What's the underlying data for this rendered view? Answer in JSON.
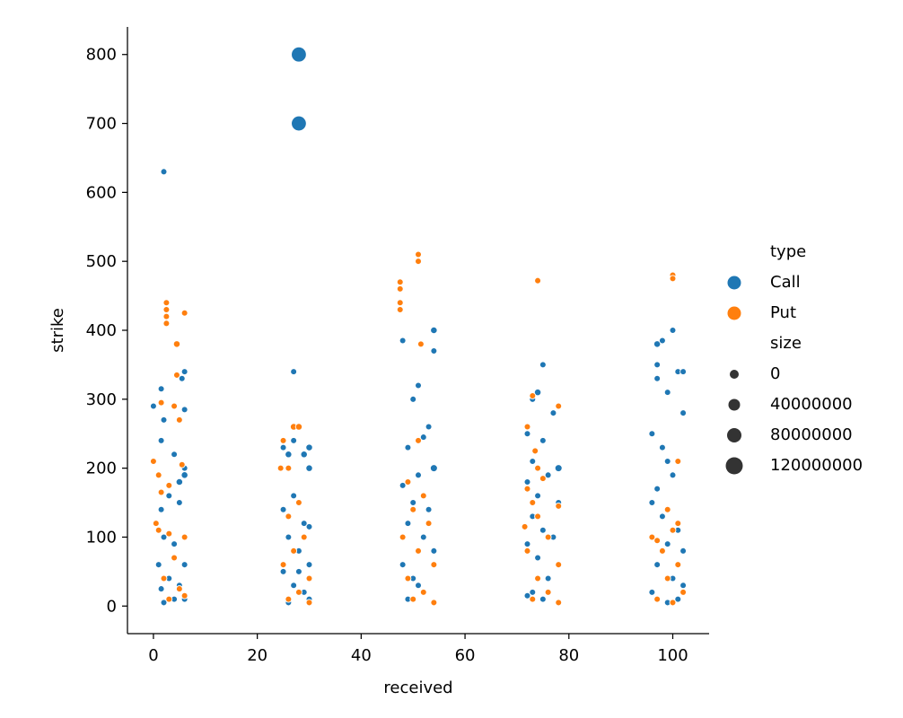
{
  "chart_data": {
    "type": "scatter",
    "xlabel": "received",
    "ylabel": "strike",
    "xlim": [
      -5,
      107
    ],
    "ylim": [
      -40,
      840
    ],
    "xticks": [
      0,
      20,
      40,
      60,
      80,
      100
    ],
    "yticks": [
      0,
      100,
      200,
      300,
      400,
      500,
      600,
      700,
      800
    ],
    "legend": {
      "placement": "right",
      "hue_title": "type",
      "hue_entries": [
        {
          "label": "Call",
          "color": "#1f77b4"
        },
        {
          "label": "Put",
          "color": "#ff7f0e"
        }
      ],
      "size_title": "size",
      "size_entries": [
        {
          "label": "0",
          "value": 0
        },
        {
          "label": "40000000",
          "value": 40000000
        },
        {
          "label": "80000000",
          "value": 80000000
        },
        {
          "label": "120000000",
          "value": 120000000
        }
      ]
    },
    "series": [
      {
        "name": "Call",
        "color": "#1f77b4",
        "points": [
          [
            28,
            800,
            100000000
          ],
          [
            28,
            700,
            100000000
          ],
          [
            2,
            630,
            5000000
          ],
          [
            1.5,
            315,
            5000000
          ],
          [
            0,
            290,
            5000000
          ],
          [
            6,
            285,
            5000000
          ],
          [
            2,
            270,
            5000000
          ],
          [
            1.5,
            240,
            5000000
          ],
          [
            4,
            220,
            5000000
          ],
          [
            5,
            180,
            10000000
          ],
          [
            1.5,
            140,
            5000000
          ],
          [
            0.5,
            120,
            5000000
          ],
          [
            3,
            160,
            5000000
          ],
          [
            5,
            150,
            5000000
          ],
          [
            6,
            200,
            5000000
          ],
          [
            6,
            190,
            10000000
          ],
          [
            2,
            100,
            5000000
          ],
          [
            4,
            90,
            5000000
          ],
          [
            6,
            60,
            5000000
          ],
          [
            1,
            60,
            5000000
          ],
          [
            3,
            40,
            5000000
          ],
          [
            5,
            30,
            5000000
          ],
          [
            6,
            10,
            5000000
          ],
          [
            2,
            5,
            5000000
          ],
          [
            4,
            10,
            5000000
          ],
          [
            1.5,
            25,
            5000000
          ],
          [
            5.5,
            330,
            5000000
          ],
          [
            6,
            340,
            5000000
          ],
          [
            27,
            340,
            5000000
          ],
          [
            25,
            230,
            5000000
          ],
          [
            26,
            220,
            10000000
          ],
          [
            27,
            240,
            5000000
          ],
          [
            29,
            220,
            10000000
          ],
          [
            30,
            230,
            10000000
          ],
          [
            30,
            200,
            10000000
          ],
          [
            25,
            140,
            5000000
          ],
          [
            27,
            160,
            5000000
          ],
          [
            29,
            120,
            5000000
          ],
          [
            30,
            115,
            5000000
          ],
          [
            26,
            100,
            5000000
          ],
          [
            28,
            80,
            5000000
          ],
          [
            30,
            60,
            5000000
          ],
          [
            25,
            50,
            5000000
          ],
          [
            27,
            30,
            5000000
          ],
          [
            29,
            20,
            5000000
          ],
          [
            30,
            10,
            5000000
          ],
          [
            26,
            5,
            5000000
          ],
          [
            28,
            50,
            5000000
          ],
          [
            48,
            385,
            5000000
          ],
          [
            54,
            400,
            10000000
          ],
          [
            54,
            370,
            5000000
          ],
          [
            50,
            300,
            5000000
          ],
          [
            51,
            320,
            5000000
          ],
          [
            53,
            260,
            5000000
          ],
          [
            49,
            230,
            5000000
          ],
          [
            52,
            245,
            5000000
          ],
          [
            54,
            200,
            15000000
          ],
          [
            51,
            190,
            5000000
          ],
          [
            48,
            175,
            5000000
          ],
          [
            50,
            150,
            5000000
          ],
          [
            53,
            140,
            5000000
          ],
          [
            49,
            120,
            5000000
          ],
          [
            52,
            100,
            5000000
          ],
          [
            54,
            80,
            5000000
          ],
          [
            48,
            60,
            5000000
          ],
          [
            50,
            40,
            5000000
          ],
          [
            52,
            20,
            5000000
          ],
          [
            54,
            5,
            10000000
          ],
          [
            49,
            10,
            5000000
          ],
          [
            51,
            30,
            5000000
          ],
          [
            75,
            350,
            5000000
          ],
          [
            74,
            310,
            10000000
          ],
          [
            73,
            300,
            5000000
          ],
          [
            77,
            280,
            5000000
          ],
          [
            72,
            250,
            5000000
          ],
          [
            75,
            240,
            5000000
          ],
          [
            73,
            210,
            5000000
          ],
          [
            78,
            200,
            15000000
          ],
          [
            76,
            190,
            5000000
          ],
          [
            72,
            180,
            5000000
          ],
          [
            74,
            160,
            5000000
          ],
          [
            78,
            150,
            5000000
          ],
          [
            73,
            130,
            5000000
          ],
          [
            75,
            110,
            5000000
          ],
          [
            77,
            100,
            5000000
          ],
          [
            72,
            90,
            5000000
          ],
          [
            74,
            70,
            5000000
          ],
          [
            78,
            60,
            5000000
          ],
          [
            76,
            40,
            5000000
          ],
          [
            73,
            20,
            5000000
          ],
          [
            75,
            10,
            5000000
          ],
          [
            78,
            5,
            5000000
          ],
          [
            72,
            15,
            5000000
          ],
          [
            100,
            400,
            5000000
          ],
          [
            97,
            380,
            10000000
          ],
          [
            98,
            385,
            5000000
          ],
          [
            97,
            350,
            5000000
          ],
          [
            97,
            330,
            5000000
          ],
          [
            99,
            310,
            5000000
          ],
          [
            101,
            340,
            5000000
          ],
          [
            102,
            340,
            5000000
          ],
          [
            102,
            280,
            5000000
          ],
          [
            96,
            250,
            5000000
          ],
          [
            98,
            230,
            5000000
          ],
          [
            99,
            210,
            5000000
          ],
          [
            100,
            190,
            5000000
          ],
          [
            97,
            170,
            5000000
          ],
          [
            96,
            150,
            5000000
          ],
          [
            98,
            130,
            5000000
          ],
          [
            101,
            110,
            5000000
          ],
          [
            99,
            90,
            5000000
          ],
          [
            102,
            80,
            5000000
          ],
          [
            97,
            60,
            5000000
          ],
          [
            100,
            40,
            5000000
          ],
          [
            102,
            30,
            5000000
          ],
          [
            96,
            20,
            5000000
          ],
          [
            101,
            10,
            5000000
          ],
          [
            99,
            5,
            5000000
          ]
        ]
      },
      {
        "name": "Put",
        "color": "#ff7f0e",
        "points": [
          [
            2.5,
            440,
            5000000
          ],
          [
            2.5,
            430,
            5000000
          ],
          [
            2.5,
            420,
            5000000
          ],
          [
            2.5,
            410,
            5000000
          ],
          [
            6,
            425,
            5000000
          ],
          [
            4.5,
            380,
            10000000
          ],
          [
            4.5,
            335,
            5000000
          ],
          [
            1.5,
            295,
            5000000
          ],
          [
            4,
            290,
            5000000
          ],
          [
            5,
            270,
            5000000
          ],
          [
            0,
            210,
            5000000
          ],
          [
            1,
            190,
            5000000
          ],
          [
            3,
            175,
            5000000
          ],
          [
            1.5,
            165,
            5000000
          ],
          [
            0.5,
            120,
            5000000
          ],
          [
            3,
            105,
            5000000
          ],
          [
            6,
            100,
            5000000
          ],
          [
            1,
            110,
            5000000
          ],
          [
            4,
            70,
            5000000
          ],
          [
            2,
            40,
            5000000
          ],
          [
            5,
            25,
            5000000
          ],
          [
            6,
            15,
            5000000
          ],
          [
            3,
            10,
            5000000
          ],
          [
            5.5,
            205,
            5000000
          ],
          [
            27,
            260,
            10000000
          ],
          [
            28,
            260,
            10000000
          ],
          [
            25,
            240,
            5000000
          ],
          [
            26,
            200,
            5000000
          ],
          [
            24.5,
            200,
            5000000
          ],
          [
            28,
            150,
            5000000
          ],
          [
            26,
            130,
            5000000
          ],
          [
            29,
            100,
            5000000
          ],
          [
            27,
            80,
            5000000
          ],
          [
            25,
            60,
            5000000
          ],
          [
            30,
            40,
            5000000
          ],
          [
            28,
            20,
            5000000
          ],
          [
            26,
            10,
            5000000
          ],
          [
            30,
            5,
            5000000
          ],
          [
            51,
            510,
            5000000
          ],
          [
            51,
            500,
            5000000
          ],
          [
            47.5,
            470,
            5000000
          ],
          [
            47.5,
            460,
            5000000
          ],
          [
            47.5,
            440,
            5000000
          ],
          [
            47.5,
            430,
            5000000
          ],
          [
            51.5,
            380,
            5000000
          ],
          [
            51,
            240,
            5000000
          ],
          [
            49,
            180,
            5000000
          ],
          [
            52,
            160,
            5000000
          ],
          [
            50,
            140,
            5000000
          ],
          [
            53,
            120,
            5000000
          ],
          [
            48,
            100,
            5000000
          ],
          [
            51,
            80,
            5000000
          ],
          [
            54,
            60,
            5000000
          ],
          [
            49,
            40,
            5000000
          ],
          [
            52,
            20,
            5000000
          ],
          [
            54,
            5,
            5000000
          ],
          [
            50,
            10,
            5000000
          ],
          [
            74,
            472,
            5000000
          ],
          [
            72,
            260,
            5000000
          ],
          [
            73.5,
            225,
            5000000
          ],
          [
            74,
            200,
            5000000
          ],
          [
            75,
            185,
            5000000
          ],
          [
            72,
            170,
            5000000
          ],
          [
            73,
            150,
            5000000
          ],
          [
            78,
            145,
            5000000
          ],
          [
            74,
            130,
            5000000
          ],
          [
            71.5,
            115,
            5000000
          ],
          [
            76,
            100,
            5000000
          ],
          [
            72,
            80,
            5000000
          ],
          [
            78,
            60,
            5000000
          ],
          [
            74,
            40,
            5000000
          ],
          [
            76,
            20,
            5000000
          ],
          [
            78,
            5,
            5000000
          ],
          [
            73,
            10,
            5000000
          ],
          [
            78,
            290,
            5000000
          ],
          [
            73,
            305,
            5000000
          ],
          [
            100,
            480,
            5000000
          ],
          [
            100,
            475,
            5000000
          ],
          [
            96,
            100,
            5000000
          ],
          [
            97,
            95,
            5000000
          ],
          [
            99,
            140,
            5000000
          ],
          [
            101,
            120,
            5000000
          ],
          [
            100,
            110,
            5000000
          ],
          [
            98,
            80,
            5000000
          ],
          [
            101,
            60,
            5000000
          ],
          [
            99,
            40,
            5000000
          ],
          [
            102,
            20,
            5000000
          ],
          [
            97,
            10,
            5000000
          ],
          [
            100,
            5,
            5000000
          ],
          [
            101,
            210,
            5000000
          ]
        ]
      }
    ]
  }
}
